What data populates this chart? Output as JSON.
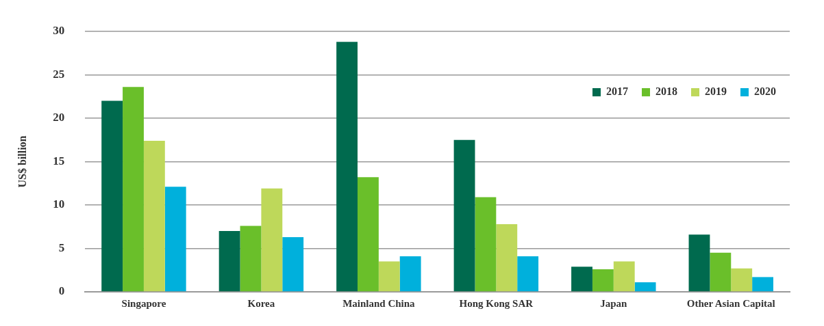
{
  "chart_data": {
    "type": "bar",
    "ylabel": "US$ billion",
    "categories": [
      "Singapore",
      "Korea",
      "Mainland China",
      "Hong Kong SAR",
      "Japan",
      "Other Asian Capital"
    ],
    "series": [
      {
        "name": "2017",
        "color": "#006a4e",
        "values": [
          22.0,
          7.0,
          28.8,
          17.5,
          2.9,
          6.6
        ]
      },
      {
        "name": "2018",
        "color": "#6abf2a",
        "values": [
          23.6,
          7.6,
          13.2,
          10.9,
          2.6,
          4.5
        ]
      },
      {
        "name": "2019",
        "color": "#bed85a",
        "values": [
          17.4,
          11.9,
          3.5,
          7.8,
          3.5,
          2.7
        ]
      },
      {
        "name": "2020",
        "color": "#00b0dc",
        "values": [
          12.1,
          6.3,
          4.1,
          4.1,
          1.1,
          1.7
        ]
      }
    ],
    "ylim": [
      0,
      30
    ],
    "yticks": [
      0,
      5,
      10,
      15,
      20,
      25,
      30
    ],
    "grid": "y",
    "legend": "top right"
  }
}
